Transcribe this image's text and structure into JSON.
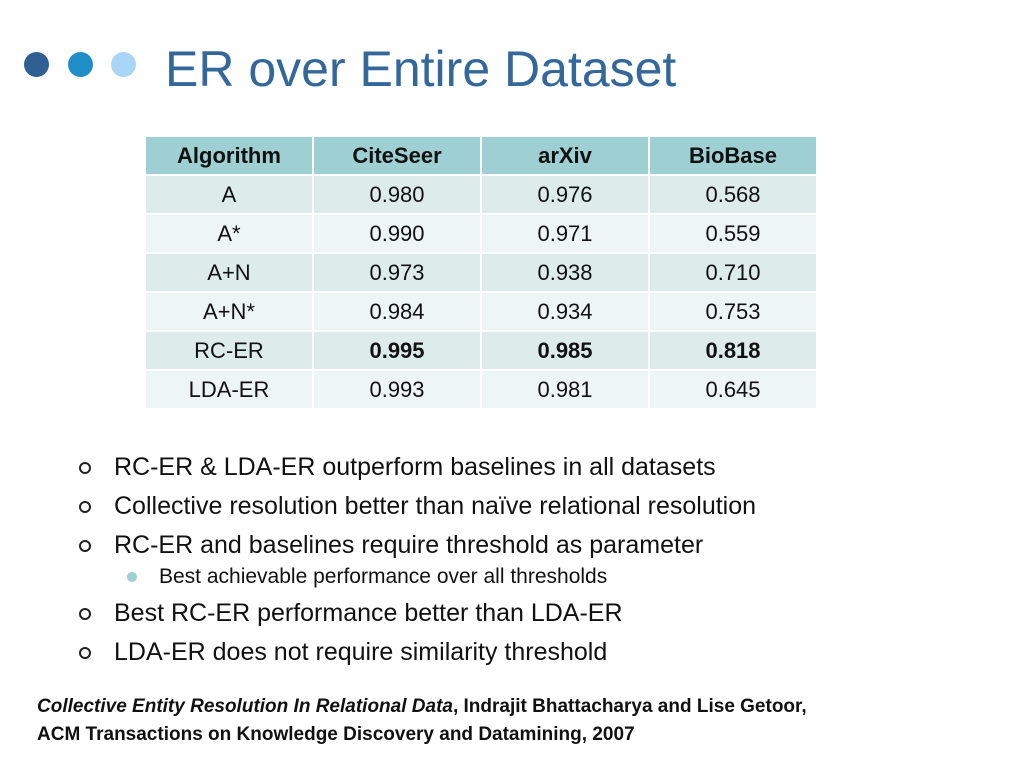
{
  "slide": {
    "title": "ER over Entire Dataset",
    "colors": {
      "title": "#34679A",
      "dot1": "#2F5F93",
      "dot2": "#1F8EC8",
      "dot3": "#A9D6F7",
      "table_header": "#9ECFD2",
      "table_row_dark": "#DDEBEB",
      "table_row_light": "#EEF5F5",
      "sub_bullet": "#9ECFD2"
    }
  },
  "table": {
    "columns": [
      "Algorithm",
      "CiteSeer",
      "arXiv",
      "BioBase"
    ],
    "rows": [
      {
        "cells": [
          "A",
          "0.980",
          "0.976",
          "0.568"
        ]
      },
      {
        "cells": [
          "A*",
          "0.990",
          "0.971",
          "0.559"
        ]
      },
      {
        "cells": [
          "A+N",
          "0.973",
          "0.938",
          "0.710"
        ]
      },
      {
        "cells": [
          "A+N*",
          "0.984",
          "0.934",
          "0.753"
        ]
      },
      {
        "cells": [
          "RC-ER",
          "0.995",
          "0.985",
          "0.818"
        ]
      },
      {
        "cells": [
          "LDA-ER",
          "0.993",
          "0.981",
          "0.645"
        ]
      }
    ]
  },
  "bullets": [
    {
      "text": "RC-ER & LDA-ER outperform baselines in all datasets"
    },
    {
      "text": "Collective resolution better than naïve relational resolution"
    },
    {
      "text": "RC-ER and baselines require threshold as parameter"
    },
    {
      "text": "Best achievable performance over all thresholds"
    },
    {
      "text": "Best RC-ER performance better than LDA-ER"
    },
    {
      "text": "LDA-ER does not require similarity threshold"
    }
  ],
  "citation": {
    "title": "Collective Entity Resolution In Relational Data",
    "rest": ", Indrajit Bhattacharya and Lise Getoor,",
    "line2": "ACM Transactions on Knowledge Discovery and Datamining, 2007"
  }
}
